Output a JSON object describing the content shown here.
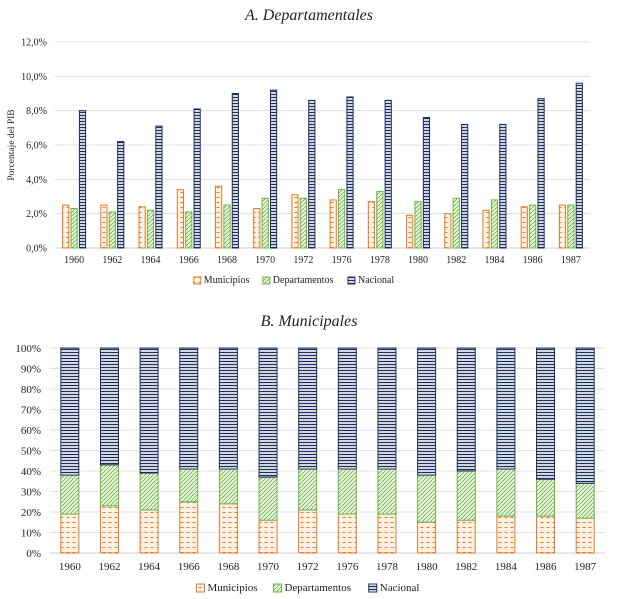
{
  "colors": {
    "municipios": "#E07B28",
    "departamentos": "#6DB33F",
    "nacional": "#1F2F5C",
    "grid": "#d9d9d9",
    "axis": "#bfbfbf"
  },
  "chart_data": [
    {
      "type": "bar",
      "title": "A. Departamentales",
      "ylabel": "Porcentaje del PIB",
      "xlabel": "",
      "ylim": [
        0,
        12
      ],
      "yticks": [
        "0,0%",
        "2,0%",
        "4,0%",
        "6,0%",
        "8,0%",
        "10,0%",
        "12,0%"
      ],
      "grid": true,
      "legend": "bottom",
      "categories": [
        "1960",
        "1962",
        "1964",
        "1966",
        "1968",
        "1970",
        "1972",
        "1976",
        "1978",
        "1980",
        "1982",
        "1984",
        "1986",
        "1987"
      ],
      "series": [
        {
          "name": "Municipios",
          "values": [
            2.5,
            2.5,
            2.4,
            3.4,
            3.6,
            2.3,
            3.1,
            2.8,
            2.7,
            1.9,
            2.0,
            2.2,
            2.4,
            2.5
          ]
        },
        {
          "name": "Departamentos",
          "values": [
            2.3,
            2.1,
            2.2,
            2.1,
            2.5,
            2.9,
            2.9,
            3.4,
            3.3,
            2.7,
            2.9,
            2.8,
            2.5,
            2.5
          ]
        },
        {
          "name": "Nacional",
          "values": [
            8.0,
            6.2,
            7.1,
            8.1,
            9.0,
            9.2,
            8.6,
            8.8,
            8.6,
            7.6,
            7.2,
            7.2,
            8.7,
            9.6
          ]
        }
      ]
    },
    {
      "type": "bar",
      "stacked": "percent",
      "title": "B. Municipales",
      "xlabel": "",
      "ylabel": "",
      "ylim": [
        0,
        100
      ],
      "yticks": [
        "0%",
        "10%",
        "20%",
        "30%",
        "40%",
        "50%",
        "60%",
        "70%",
        "80%",
        "90%",
        "100%"
      ],
      "grid": true,
      "legend": "bottom",
      "categories": [
        "1960",
        "1962",
        "1964",
        "1966",
        "1968",
        "1970",
        "1972",
        "1976",
        "1978",
        "1980",
        "1982",
        "1984",
        "1986",
        "1987"
      ],
      "series": [
        {
          "name": "Municipios",
          "values": [
            19,
            23,
            21,
            25,
            24,
            16,
            21,
            19,
            19,
            15,
            16,
            18,
            18,
            17
          ]
        },
        {
          "name": "Departamentos",
          "values": [
            19,
            20,
            18,
            16,
            17,
            21,
            20,
            22,
            22,
            23,
            24,
            23,
            18,
            17
          ]
        },
        {
          "name": "Nacional",
          "values": [
            62,
            57,
            61,
            59,
            59,
            63,
            59,
            59,
            59,
            62,
            60,
            59,
            64,
            66
          ]
        }
      ]
    }
  ]
}
